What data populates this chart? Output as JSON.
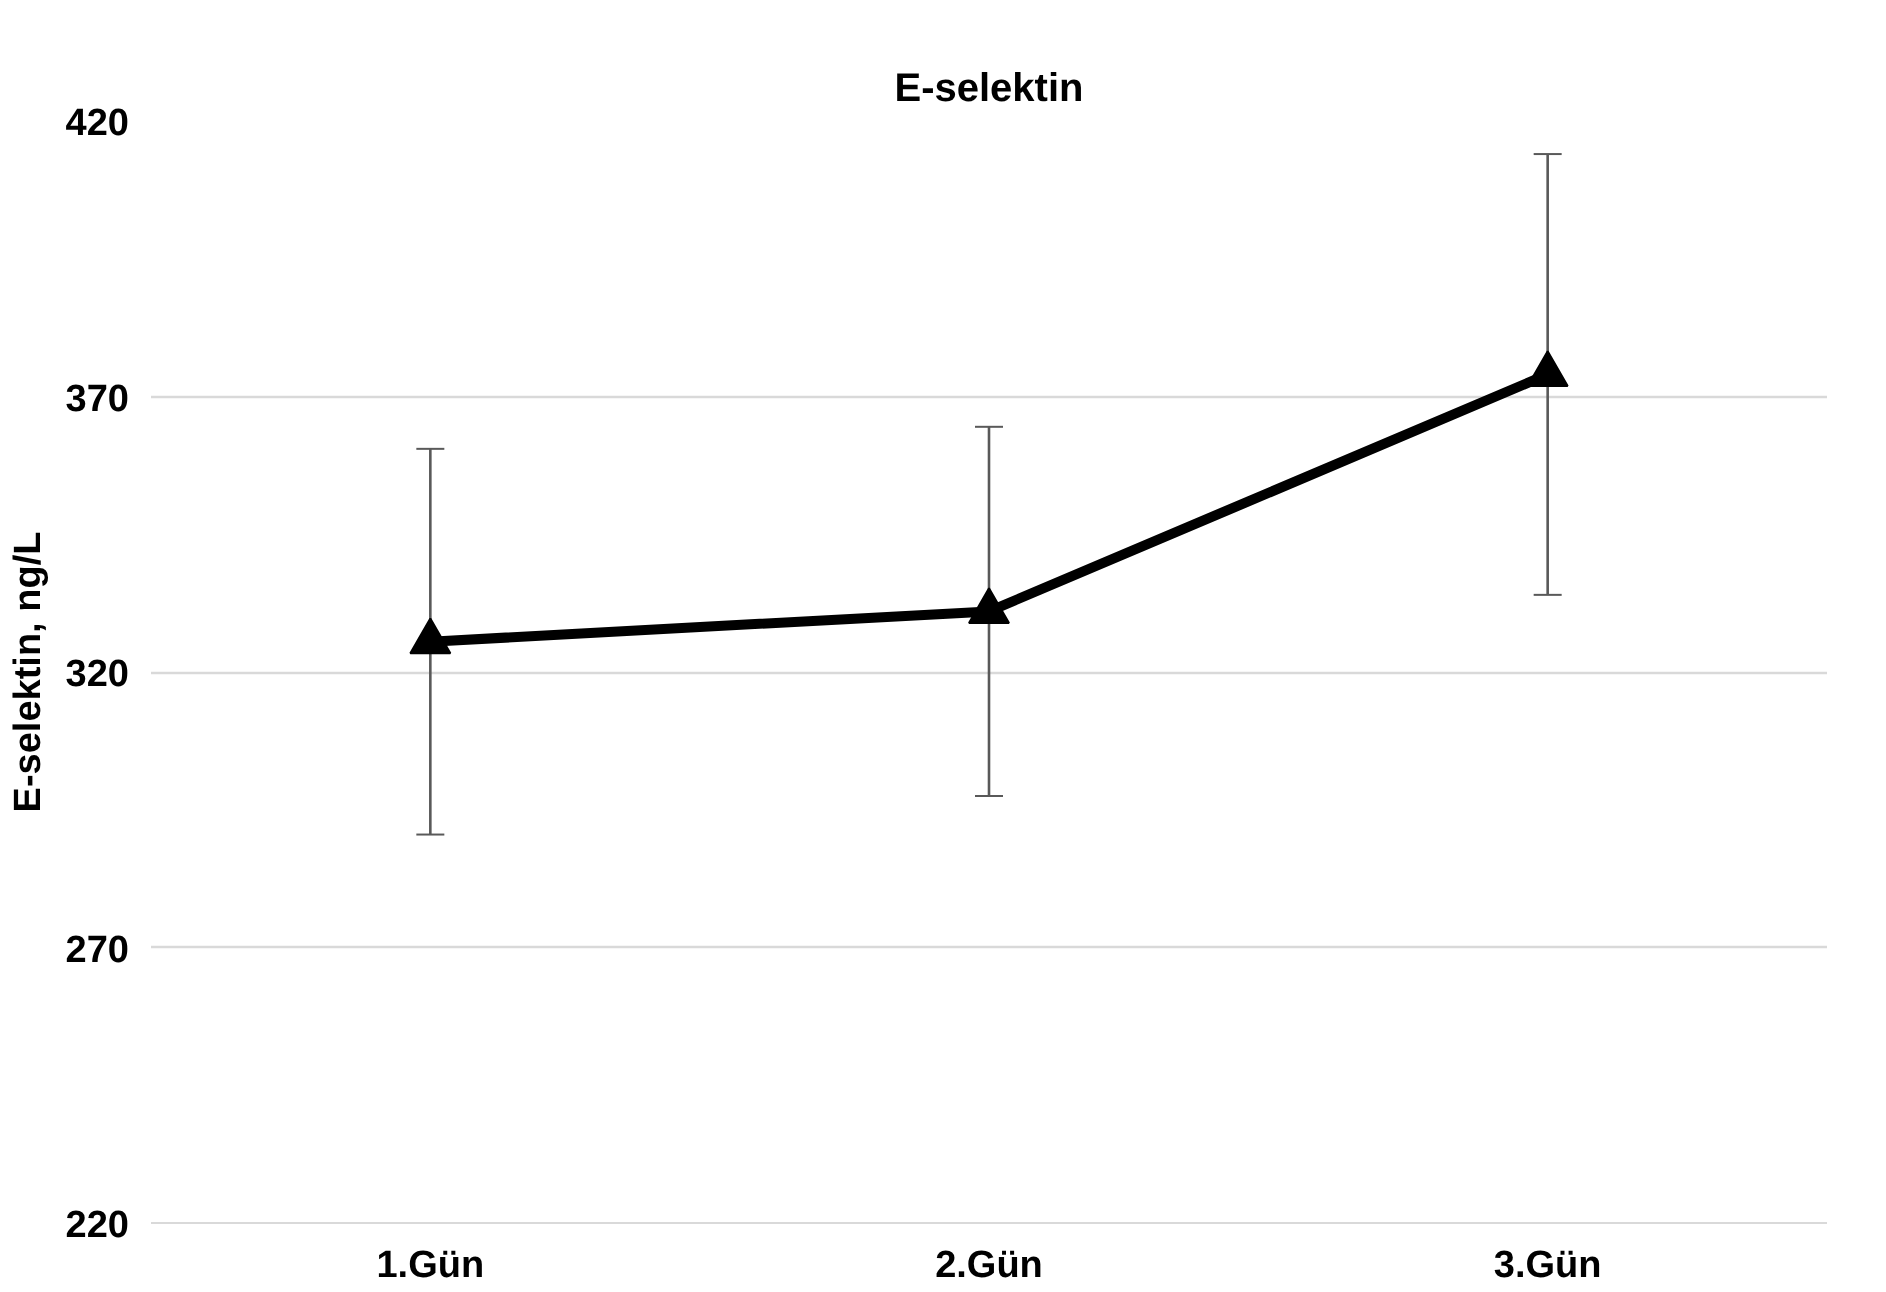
{
  "chart_data": {
    "type": "line",
    "title": "E-selektin",
    "ylabel": "E-selektin, ng/L",
    "categories": [
      "1.Gün",
      "2.Gün",
      "3.Gün"
    ],
    "series": [
      {
        "color": "#000000",
        "values": [
          325.5,
          331,
          374
        ],
        "errors": [
          35,
          33.5,
          40
        ]
      }
    ],
    "ylim": [
      220,
      420
    ],
    "yticks": [
      220,
      270,
      320,
      370,
      420
    ],
    "grid": "y",
    "marker": "triangle",
    "line_style": "solid"
  }
}
